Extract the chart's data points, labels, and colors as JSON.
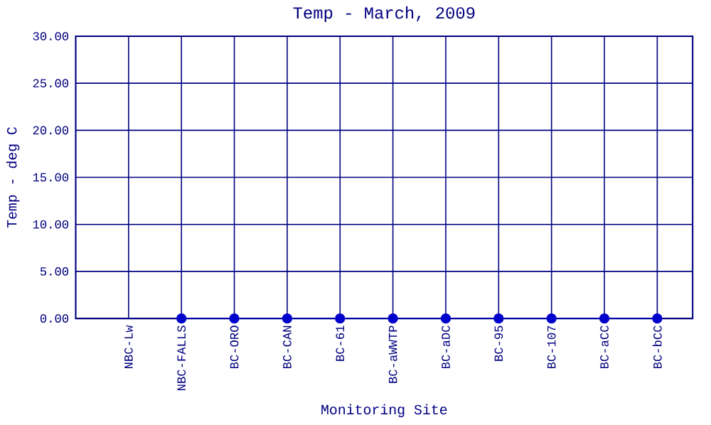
{
  "chart_data": {
    "type": "line",
    "title": "Temp - March, 2009",
    "xlabel": "Monitoring Site",
    "ylabel": "Temp - deg C",
    "categories": [
      "NBC-Lw",
      "NBC-FALLS",
      "BC-ORO",
      "BC-CAN",
      "BC-61",
      "BC-aWWTP",
      "BC-aDC",
      "BC-95",
      "BC-107",
      "BC-aCC",
      "BC-bCC"
    ],
    "series": [
      {
        "color": "#0000cc",
        "values": [
          null,
          0,
          0,
          0,
          0,
          0,
          0,
          0,
          0,
          0,
          0
        ]
      }
    ],
    "marker": "circle",
    "grid": true,
    "ylim": [
      0,
      30
    ],
    "yticks": [
      {
        "value": 0,
        "label": "0.00"
      },
      {
        "value": 5,
        "label": "5.00"
      },
      {
        "value": 10,
        "label": "10.00"
      },
      {
        "value": 15,
        "label": "15.00"
      },
      {
        "value": 20,
        "label": "20.00"
      },
      {
        "value": 25,
        "label": "25.00"
      },
      {
        "value": 30,
        "label": "30.00"
      }
    ]
  }
}
